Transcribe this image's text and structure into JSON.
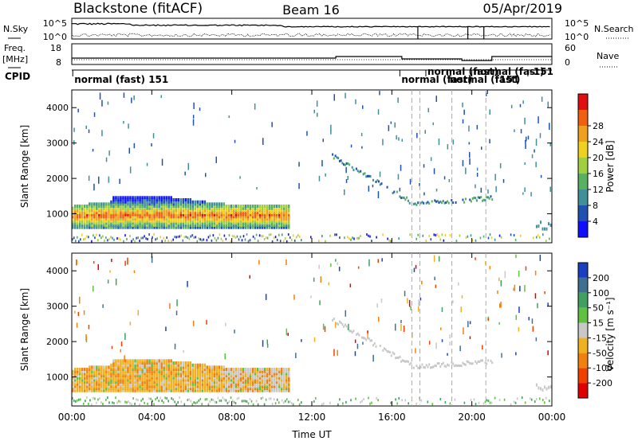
{
  "header": {
    "station": "Blackstone (fitACF)",
    "beam": "Beam 16",
    "date": "05/Apr/2019"
  },
  "chart_data": {
    "type": "heatmap",
    "x_ticks": [
      "00:00",
      "04:00",
      "08:00",
      "12:00",
      "16:00",
      "20:00",
      "00:00"
    ],
    "xlabel": "Time UT",
    "top_panels": {
      "nsky_label": "N.Sky",
      "nsky_ticks": [
        "10^5",
        "10^0"
      ],
      "nsearch_label": "N.Search",
      "nsearch_ticks": [
        "10^5",
        "10^0"
      ],
      "freq_label": "Freq.",
      "freq_unit": "[MHz]",
      "freq_ticks": [
        "18",
        "8"
      ],
      "nave_label": "Nave",
      "nave_ticks": [
        "60",
        "0"
      ],
      "cpid_label": "CPID",
      "cpid_entries": [
        {
          "text": "normal (fast) 151",
          "time_h": 0.05,
          "row": 0
        },
        {
          "text": "normal (fast)",
          "time_h": 17.7,
          "row": 1
        },
        {
          "text": "normal (fast)",
          "time_h": 16.4,
          "row": 2
        },
        {
          "text": "normal (fast)",
          "time_h": 18.8,
          "row": 2
        },
        {
          "text": "151",
          "time_h": 21.3,
          "row": 2
        },
        {
          "text": "normal (fast)",
          "time_h": 20.0,
          "row": 1
        },
        {
          "text": "-151",
          "time_h": 22.8,
          "row": 1
        }
      ]
    },
    "power_panel": {
      "ylabel": "Slant Range [km]",
      "y_ticks": [
        "1000",
        "2000",
        "3000",
        "4000"
      ],
      "ylim": [
        180,
        4500
      ],
      "colorbar_label": "Power [dB]",
      "colorbar_ticks": [
        "4",
        "8",
        "12",
        "16",
        "20",
        "24",
        "28"
      ],
      "colorbar_colors": [
        "#1010ff",
        "#2050b0",
        "#40909a",
        "#58b060",
        "#a0d040",
        "#f0d020",
        "#f0a020",
        "#f06010",
        "#e01010"
      ]
    },
    "velocity_panel": {
      "ylabel": "Slant Range [km]",
      "y_ticks": [
        "1000",
        "2000",
        "3000",
        "4000"
      ],
      "ylim": [
        180,
        4500
      ],
      "colorbar_label": "Velocity [m s⁻¹]",
      "colorbar_ticks": [
        "-200",
        "-100",
        "-50",
        "-15",
        "15",
        "50",
        "100",
        "200"
      ],
      "colorbar_colors": [
        "#e00000",
        "#f04000",
        "#f08010",
        "#f0b020",
        "#c8c8c8",
        "#60c040",
        "#40a060",
        "#407090",
        "#1840c0"
      ]
    },
    "dashed_times_h": [
      17.0,
      17.4,
      19.0,
      20.7
    ],
    "data_gap_times_h": [
      17.3,
      19.8,
      20.6
    ]
  }
}
